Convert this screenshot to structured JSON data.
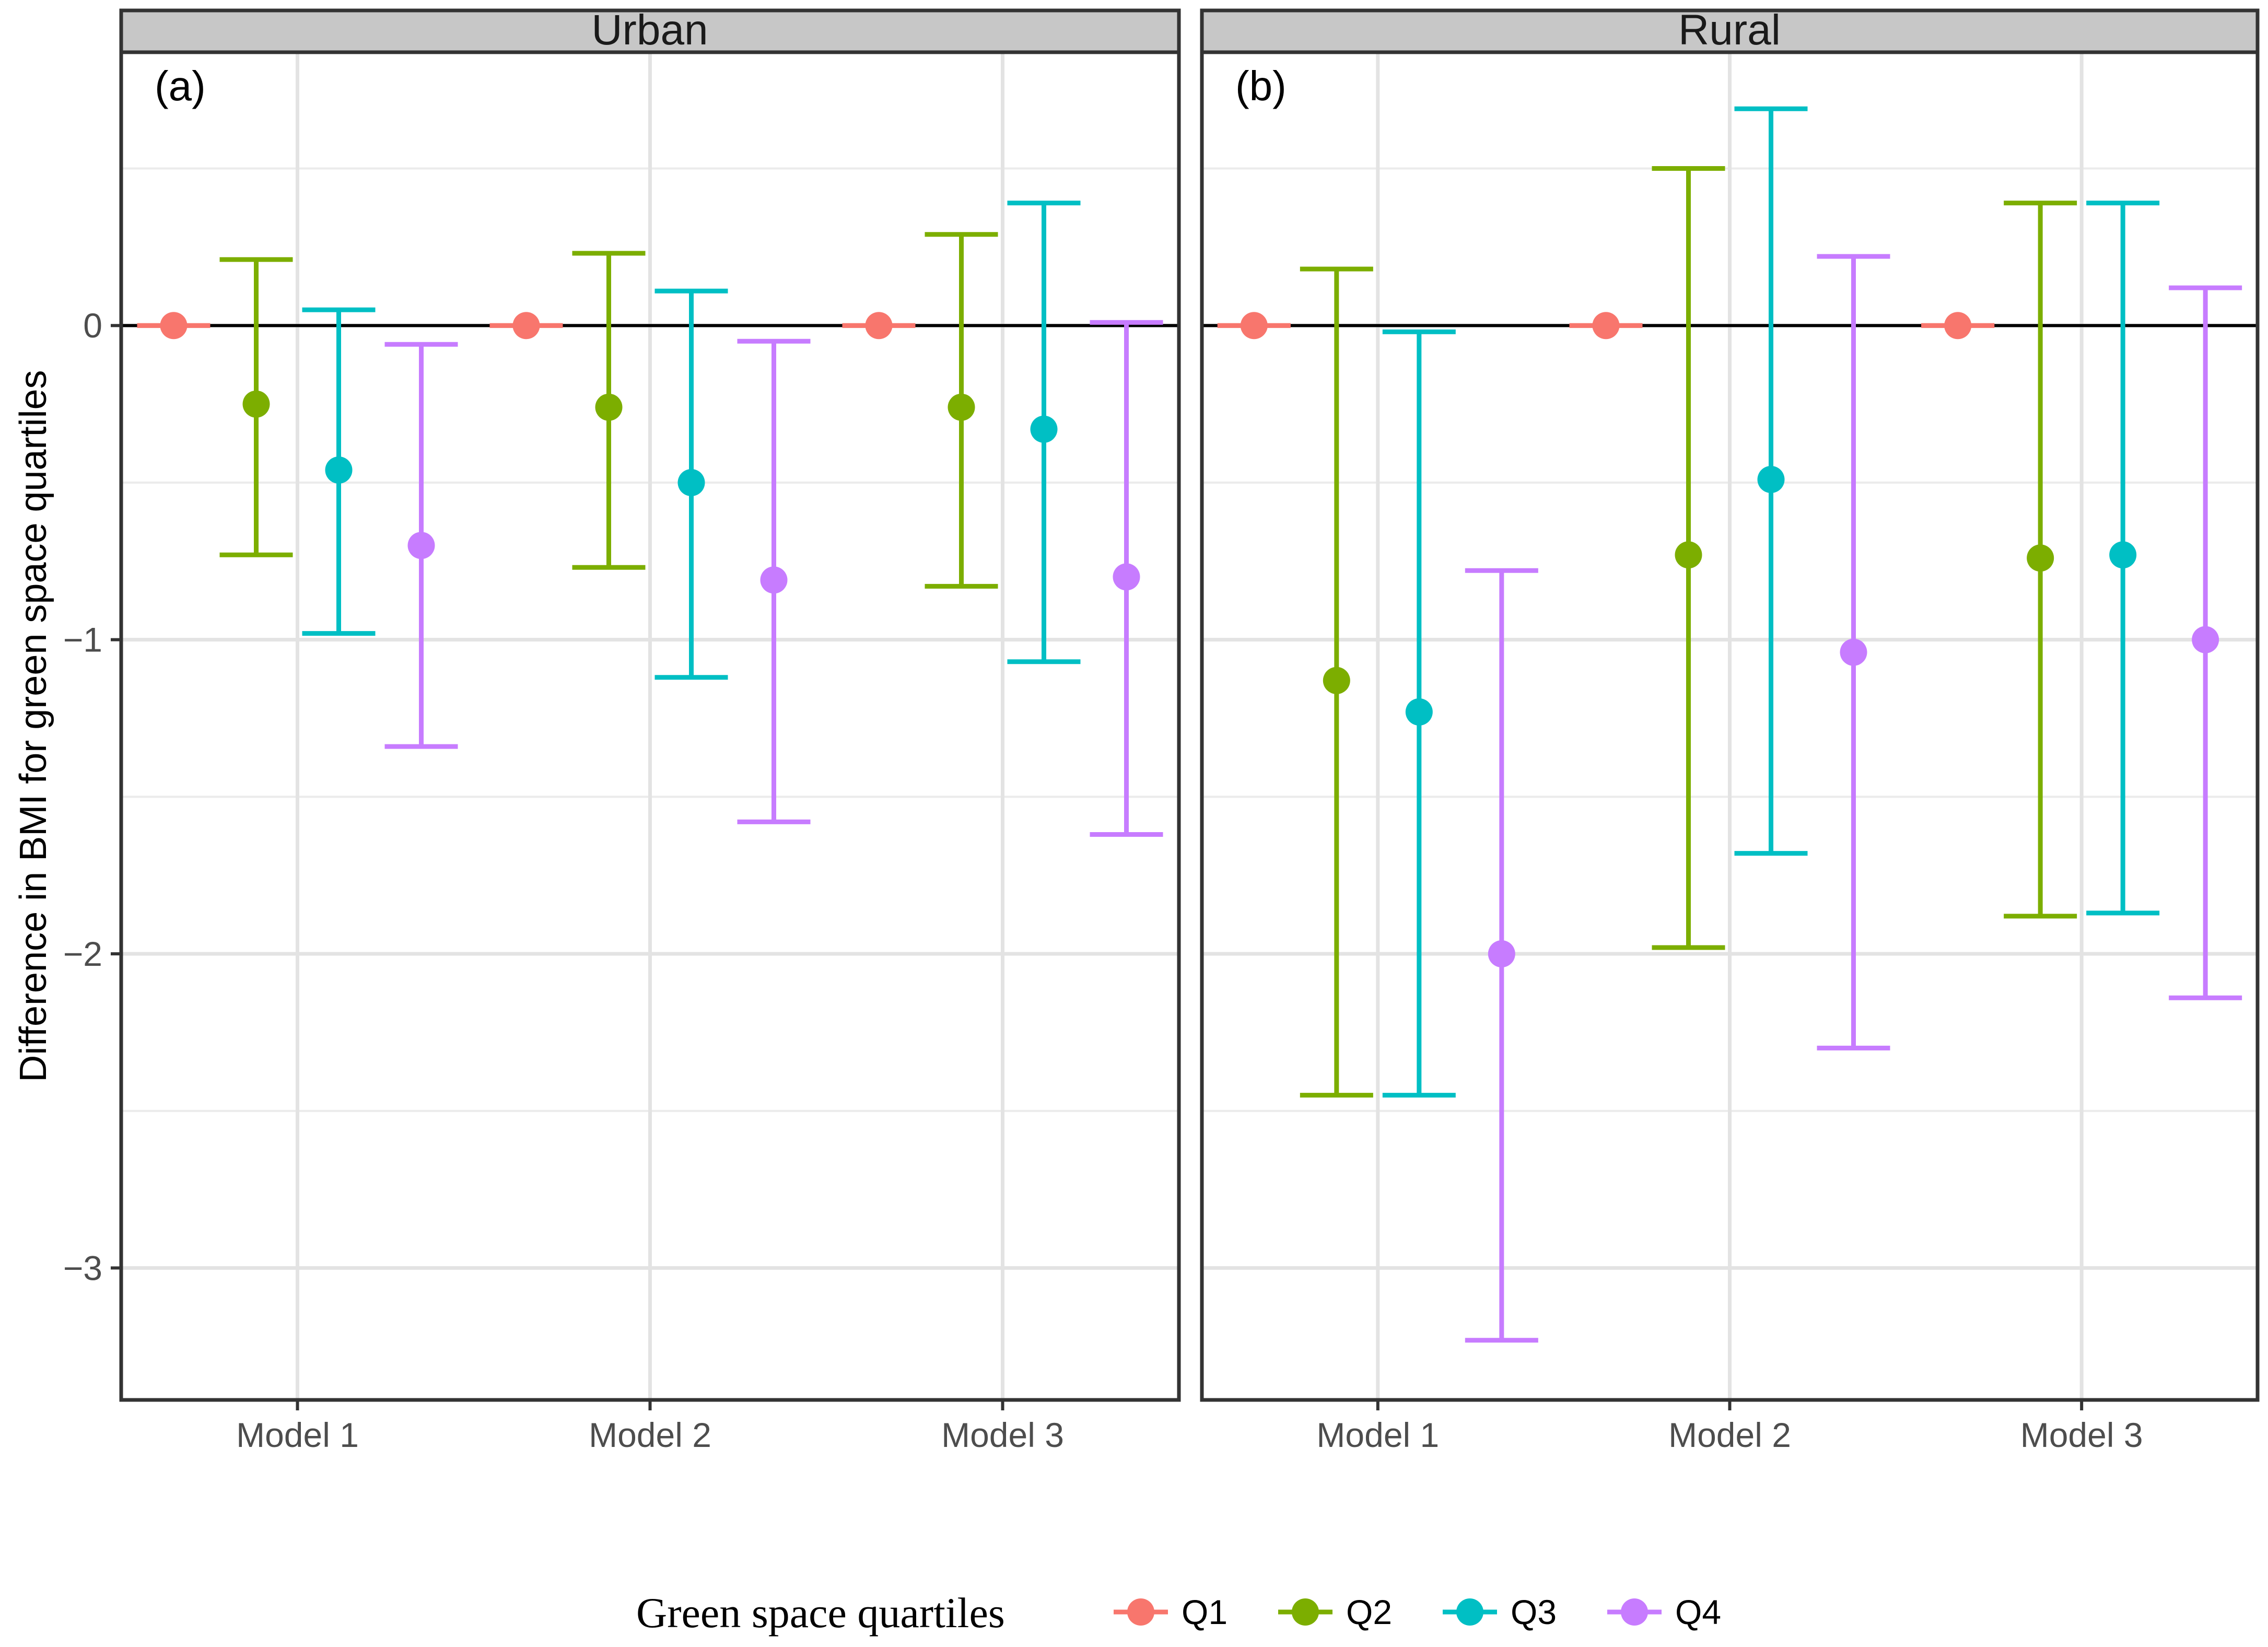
{
  "chart_data": {
    "type": "errorbar",
    "y_axis": {
      "label": "Difference in BMI for green space quartiles",
      "ticks": [
        0,
        -1,
        -2,
        -3
      ],
      "tick_labels": [
        "0",
        "−1",
        "−2",
        "−3"
      ],
      "ylim": [
        -3.42,
        0.87
      ]
    },
    "categories": [
      "Model 1",
      "Model 2",
      "Model 3"
    ],
    "legend": {
      "title": "Green space quartiles",
      "position": "bottom",
      "items": [
        {
          "name": "Q1",
          "color": "#F8766D"
        },
        {
          "name": "Q2",
          "color": "#7CAE00"
        },
        {
          "name": "Q3",
          "color": "#00BFC4"
        },
        {
          "name": "Q4",
          "color": "#C77CFF"
        }
      ]
    },
    "panels": [
      {
        "strip": "Urban",
        "tag": "(a)",
        "series": [
          {
            "name": "Q1",
            "est": [
              0,
              0,
              0
            ],
            "lo": [
              0,
              0,
              0
            ],
            "hi": [
              0,
              0,
              0
            ]
          },
          {
            "name": "Q2",
            "est": [
              -0.25,
              -0.26,
              -0.26
            ],
            "lo": [
              -0.73,
              -0.77,
              -0.83
            ],
            "hi": [
              0.21,
              0.23,
              0.29
            ]
          },
          {
            "name": "Q3",
            "est": [
              -0.46,
              -0.5,
              -0.33
            ],
            "lo": [
              -0.98,
              -1.12,
              -1.07
            ],
            "hi": [
              0.05,
              0.11,
              0.39
            ]
          },
          {
            "name": "Q4",
            "est": [
              -0.7,
              -0.81,
              -0.8
            ],
            "lo": [
              -1.34,
              -1.58,
              -1.62
            ],
            "hi": [
              -0.06,
              -0.05,
              0.01
            ]
          }
        ]
      },
      {
        "strip": "Rural",
        "tag": "(b)",
        "series": [
          {
            "name": "Q1",
            "est": [
              0,
              0,
              0
            ],
            "lo": [
              0,
              0,
              0
            ],
            "hi": [
              0,
              0,
              0
            ]
          },
          {
            "name": "Q2",
            "est": [
              -1.13,
              -0.73,
              -0.74
            ],
            "lo": [
              -2.45,
              -1.98,
              -1.88
            ],
            "hi": [
              0.18,
              0.5,
              0.39
            ]
          },
          {
            "name": "Q3",
            "est": [
              -1.23,
              -0.49,
              -0.73
            ],
            "lo": [
              -2.45,
              -1.68,
              -1.87
            ],
            "hi": [
              -0.02,
              0.69,
              0.39
            ]
          },
          {
            "name": "Q4",
            "est": [
              -2.0,
              -1.04,
              -1.0
            ],
            "lo": [
              -3.23,
              -2.3,
              -2.14
            ],
            "hi": [
              -0.78,
              0.22,
              0.12
            ]
          }
        ]
      }
    ]
  }
}
